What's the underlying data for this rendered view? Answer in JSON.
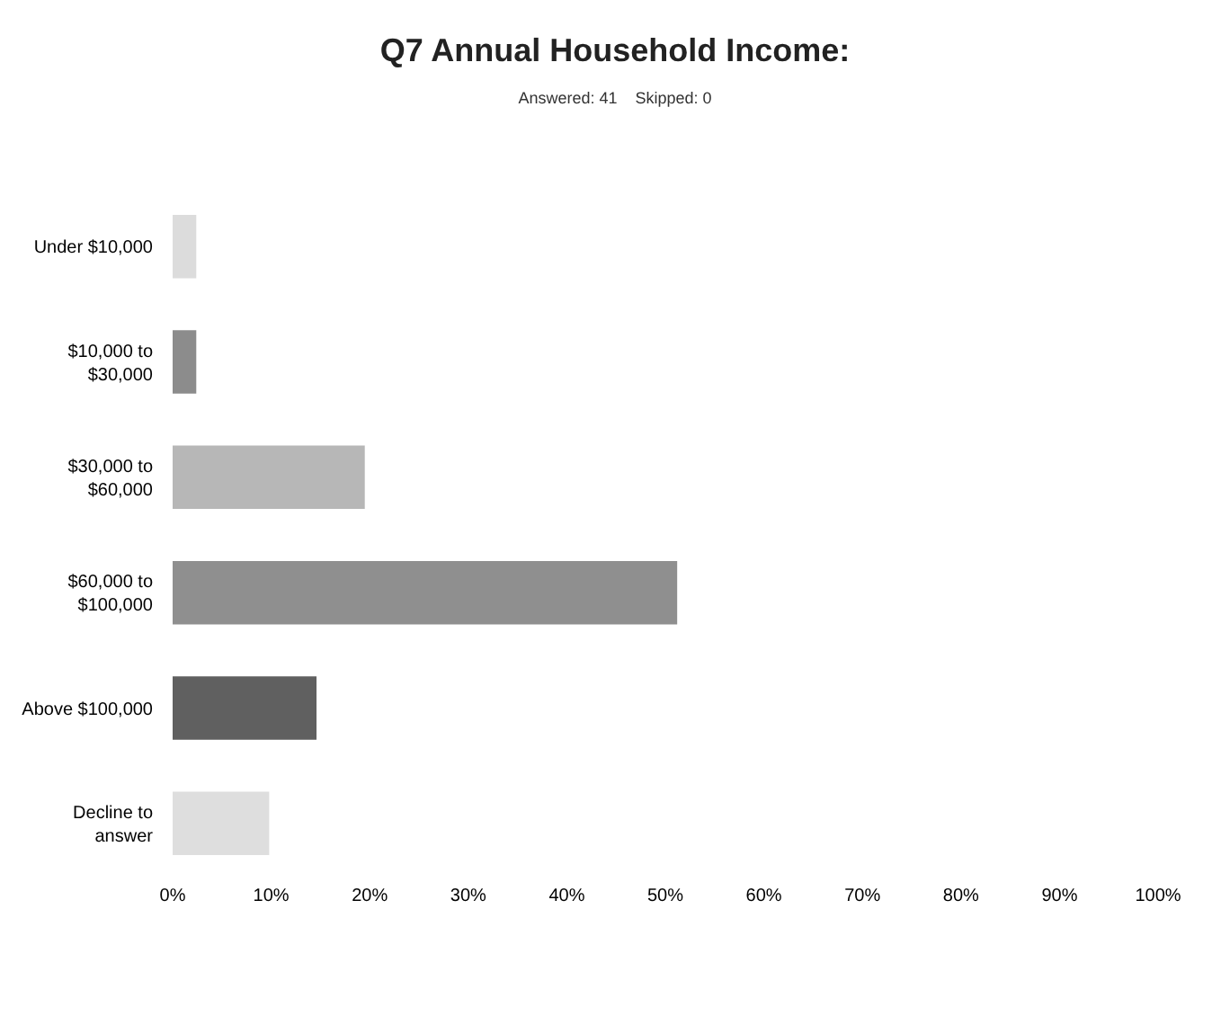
{
  "chart_data": {
    "type": "bar",
    "orientation": "horizontal",
    "title": "Q7 Annual Household Income:",
    "subtitle": "Answered: 41    Skipped: 0",
    "categories": [
      "Under $10,000",
      "$10,000 to\n$30,000",
      "$30,000 to\n$60,000",
      "$60,000 to\n$100,000",
      "Above $100,000",
      "Decline to\nanswer"
    ],
    "values": [
      2.4,
      2.4,
      19.5,
      51.2,
      14.6,
      9.8
    ],
    "colors": [
      "#dcdcdc",
      "#8c8c8c",
      "#b7b7b7",
      "#8f8f8f",
      "#606060",
      "#dedede"
    ],
    "xlim": [
      0,
      100
    ],
    "xticks": [
      {
        "value": 0,
        "label": "0%"
      },
      {
        "value": 10,
        "label": "10%"
      },
      {
        "value": 20,
        "label": "20%"
      },
      {
        "value": 30,
        "label": "30%"
      },
      {
        "value": 40,
        "label": "40%"
      },
      {
        "value": 50,
        "label": "50%"
      },
      {
        "value": 60,
        "label": "60%"
      },
      {
        "value": 70,
        "label": "70%"
      },
      {
        "value": 80,
        "label": "80%"
      },
      {
        "value": 90,
        "label": "90%"
      },
      {
        "value": 100,
        "label": "100%"
      }
    ],
    "grid": false,
    "legend": false
  }
}
